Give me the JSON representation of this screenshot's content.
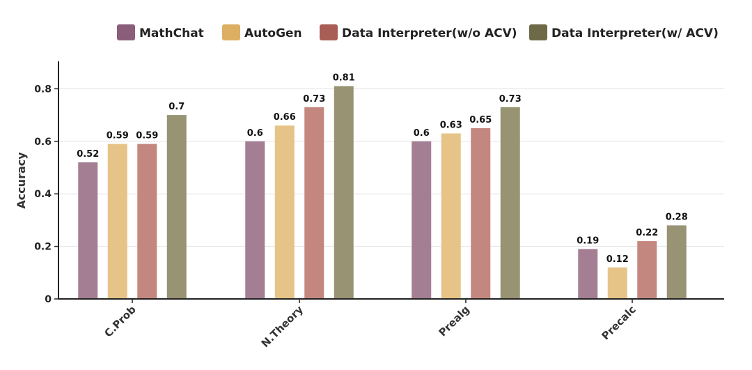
{
  "chart_data": {
    "type": "bar",
    "title": "",
    "xlabel": "",
    "ylabel": "Accuracy",
    "ylim": [
      0,
      0.9
    ],
    "yticks": [
      0,
      0.2,
      0.4,
      0.6,
      0.8
    ],
    "ytick_labels": [
      "0",
      "0.2",
      "0.4",
      "0.6",
      "0.8"
    ],
    "grid": true,
    "legend_position": "top",
    "categories": [
      "C.Prob",
      "N.Theory",
      "Prealg",
      "Precalc"
    ],
    "series": [
      {
        "name": "MathChat",
        "color": "#a47f94",
        "legend_color": "#8a5e7a",
        "values": [
          0.52,
          0.6,
          0.6,
          0.19
        ],
        "labels": [
          "0.52",
          "0.6",
          "0.6",
          "0.19"
        ]
      },
      {
        "name": "AutoGen",
        "color": "#e6c488",
        "legend_color": "#dcaf62",
        "values": [
          0.59,
          0.66,
          0.63,
          0.12
        ],
        "labels": [
          "0.59",
          "0.66",
          "0.63",
          "0.12"
        ]
      },
      {
        "name": "Data Interpreter(w/o ACV)",
        "color": "#c4877f",
        "legend_color": "#a85e56",
        "values": [
          0.59,
          0.73,
          0.65,
          0.22
        ],
        "labels": [
          "0.59",
          "0.73",
          "0.65",
          "0.22"
        ]
      },
      {
        "name": "Data Interpreter(w/ ACV)",
        "color": "#979373",
        "legend_color": "#6e6a48",
        "values": [
          0.7,
          0.81,
          0.73,
          0.28
        ],
        "labels": [
          "0.7",
          "0.81",
          "0.73",
          "0.28"
        ]
      }
    ]
  }
}
